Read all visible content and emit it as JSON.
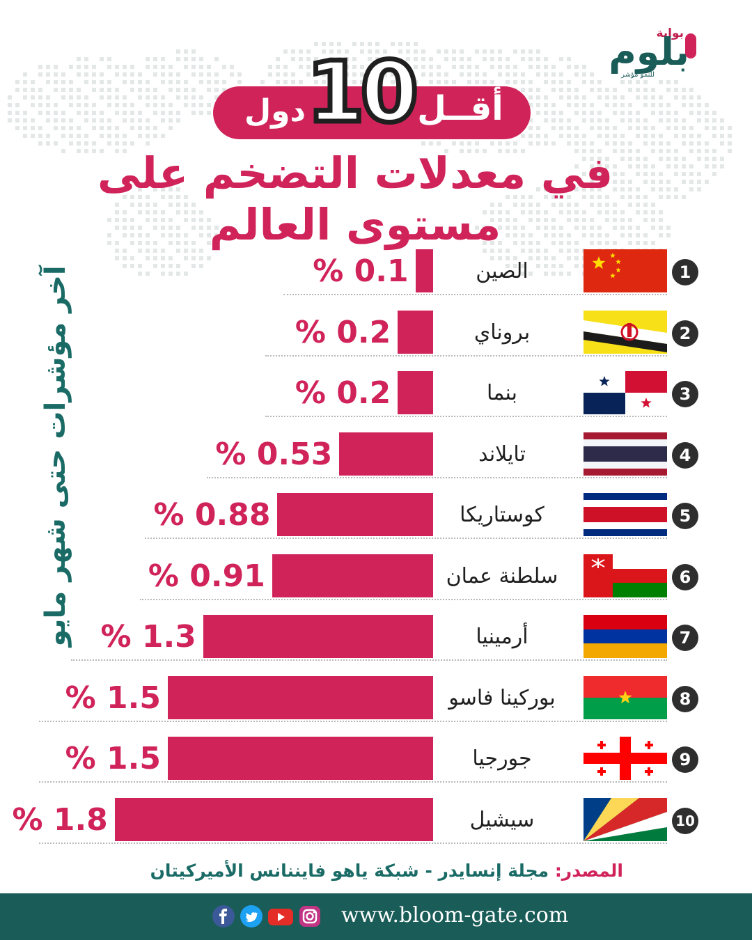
{
  "brand": {
    "small": "بوابة",
    "main": "بلوم",
    "tagline": "للنمو مؤشر"
  },
  "title": {
    "few": "أقــل",
    "number": "10",
    "countries": "دول",
    "main": "في معدلات التضخم على مستوى العالم"
  },
  "side_label": "آخر مؤشرات حتى شهر مايو",
  "chart_data": {
    "type": "bar",
    "orientation": "horizontal",
    "categories": [
      "الصين",
      "بروناي",
      "بنما",
      "تايلاند",
      "كوستاريكا",
      "سلطنة عمان",
      "أرمينيا",
      "بوركينا فاسو",
      "جورجيا",
      "سيشيل"
    ],
    "ranks": [
      "1",
      "2",
      "3",
      "4",
      "5",
      "6",
      "7",
      "8",
      "9",
      "10"
    ],
    "values": [
      0.1,
      0.2,
      0.2,
      0.53,
      0.88,
      0.91,
      1.3,
      1.5,
      1.5,
      1.8
    ],
    "value_labels": [
      "% 0.1",
      "% 0.2",
      "% 0.2",
      "% 0.53",
      "% 0.88",
      "% 0.91",
      "% 1.3",
      "% 1.5",
      "% 1.5",
      "% 1.8"
    ],
    "unit": "%",
    "bar_color": "#d0235a"
  },
  "flags": [
    "china-flag",
    "brunei-flag",
    "panama-flag",
    "thailand-flag",
    "costa-rica-flag",
    "oman-flag",
    "armenia-flag",
    "burkina-faso-flag",
    "georgia-flag",
    "seychelles-flag"
  ],
  "source": {
    "label": "المصدر:",
    "text": "مجلة إنسايدر - شبكة ياهو فايننانس الأميركيتان"
  },
  "footer": {
    "url": "www.bloom-gate.com",
    "icons": [
      "facebook-icon",
      "twitter-icon",
      "youtube-icon",
      "instagram-icon"
    ]
  },
  "colors": {
    "accent": "#d0235a",
    "teal": "#1a5c58",
    "dark": "#2e2e2e"
  }
}
